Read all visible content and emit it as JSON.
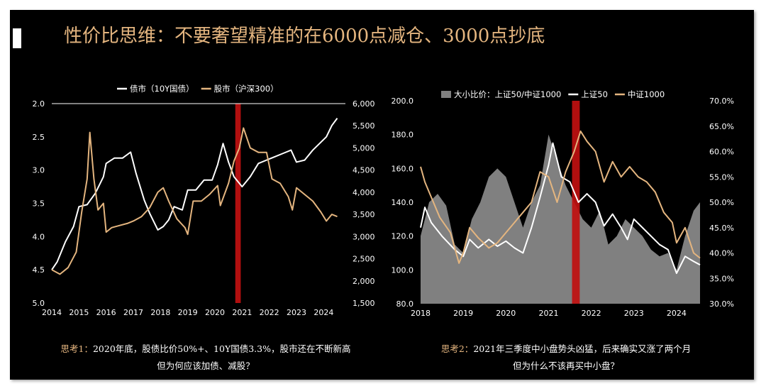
{
  "title": "性价比思维：不要奢望精准的在6000点减仓、3000点抄底",
  "colors": {
    "background": "#000000",
    "gold": "#e4b57f",
    "white": "#ffffff",
    "red": "#c01010",
    "gray": "#808080"
  },
  "chart_data": [
    {
      "type": "line",
      "legend_position": "top",
      "series": [
        {
          "name": "债市（10Y国债）",
          "axis": "left-inverted",
          "color": "#ffffff",
          "points": [
            [
              2014.0,
              4.5
            ],
            [
              2014.2,
              4.38
            ],
            [
              2014.5,
              4.08
            ],
            [
              2014.8,
              3.85
            ],
            [
              2015.0,
              3.55
            ],
            [
              2015.3,
              3.52
            ],
            [
              2015.6,
              3.35
            ],
            [
              2015.9,
              3.1
            ],
            [
              2016.0,
              2.9
            ],
            [
              2016.3,
              2.82
            ],
            [
              2016.6,
              2.82
            ],
            [
              2016.9,
              2.73
            ],
            [
              2017.1,
              3.05
            ],
            [
              2017.4,
              3.45
            ],
            [
              2017.6,
              3.65
            ],
            [
              2017.9,
              3.9
            ],
            [
              2018.1,
              3.85
            ],
            [
              2018.3,
              3.75
            ],
            [
              2018.5,
              3.55
            ],
            [
              2018.8,
              3.6
            ],
            [
              2019.0,
              3.3
            ],
            [
              2019.3,
              3.3
            ],
            [
              2019.6,
              3.15
            ],
            [
              2019.9,
              3.15
            ],
            [
              2020.1,
              2.92
            ],
            [
              2020.3,
              2.6
            ],
            [
              2020.5,
              2.88
            ],
            [
              2020.7,
              3.1
            ],
            [
              2020.9,
              3.2
            ],
            [
              2021.0,
              3.25
            ],
            [
              2021.3,
              3.1
            ],
            [
              2021.6,
              2.9
            ],
            [
              2021.9,
              2.85
            ],
            [
              2022.2,
              2.8
            ],
            [
              2022.5,
              2.75
            ],
            [
              2022.8,
              2.7
            ],
            [
              2023.0,
              2.88
            ],
            [
              2023.3,
              2.85
            ],
            [
              2023.6,
              2.7
            ],
            [
              2023.9,
              2.58
            ],
            [
              2024.1,
              2.5
            ],
            [
              2024.3,
              2.33
            ],
            [
              2024.5,
              2.22
            ]
          ]
        },
        {
          "name": "股市（沪深300）",
          "axis": "right",
          "color": "#e4b57f",
          "points": [
            [
              2014.0,
              2250
            ],
            [
              2014.3,
              2150
            ],
            [
              2014.6,
              2300
            ],
            [
              2014.9,
              2650
            ],
            [
              2015.1,
              3550
            ],
            [
              2015.3,
              4300
            ],
            [
              2015.4,
              5350
            ],
            [
              2015.55,
              4300
            ],
            [
              2015.7,
              3600
            ],
            [
              2015.9,
              3750
            ],
            [
              2016.0,
              3100
            ],
            [
              2016.2,
              3200
            ],
            [
              2016.5,
              3250
            ],
            [
              2016.8,
              3300
            ],
            [
              2017.0,
              3350
            ],
            [
              2017.3,
              3450
            ],
            [
              2017.6,
              3650
            ],
            [
              2017.9,
              4000
            ],
            [
              2018.1,
              4100
            ],
            [
              2018.3,
              3800
            ],
            [
              2018.6,
              3400
            ],
            [
              2018.9,
              3200
            ],
            [
              2019.0,
              3050
            ],
            [
              2019.2,
              3800
            ],
            [
              2019.5,
              3800
            ],
            [
              2019.8,
              3950
            ],
            [
              2020.1,
              4150
            ],
            [
              2020.2,
              3700
            ],
            [
              2020.5,
              4200
            ],
            [
              2020.7,
              4700
            ],
            [
              2020.9,
              5000
            ],
            [
              2021.05,
              5450
            ],
            [
              2021.3,
              5000
            ],
            [
              2021.6,
              4900
            ],
            [
              2021.9,
              4900
            ],
            [
              2022.1,
              4300
            ],
            [
              2022.4,
              4200
            ],
            [
              2022.7,
              3900
            ],
            [
              2022.85,
              3600
            ],
            [
              2023.0,
              4100
            ],
            [
              2023.3,
              3950
            ],
            [
              2023.6,
              3800
            ],
            [
              2023.9,
              3550
            ],
            [
              2024.1,
              3350
            ],
            [
              2024.3,
              3500
            ],
            [
              2024.5,
              3450
            ]
          ]
        }
      ],
      "x_ticks": [
        "2014",
        "2015",
        "2016",
        "2017",
        "2018",
        "2019",
        "2020",
        "2021",
        "2022",
        "2023",
        "2024"
      ],
      "y_left_ticks": [
        "2.0",
        "2.5",
        "3.0",
        "3.5",
        "4.0",
        "4.5",
        "5.0"
      ],
      "y_right_ticks": [
        "1,500",
        "2,000",
        "2,500",
        "3,000",
        "3,500",
        "4,000",
        "4,500",
        "5,000",
        "5,500",
        "6,000"
      ],
      "x_range": [
        2014,
        2024.8
      ],
      "y_left_range": [
        2.0,
        5.0
      ],
      "y_right_range": [
        1500,
        6000
      ],
      "highlight_band": [
        2020.75,
        2020.95
      ]
    },
    {
      "type": "area",
      "legend_position": "top",
      "series": [
        {
          "name": "大小比价：上证50/中证1000",
          "axis": "left",
          "color": "#808080",
          "points": [
            [
              2018.0,
              120
            ],
            [
              2018.2,
              140
            ],
            [
              2018.4,
              145
            ],
            [
              2018.6,
              138
            ],
            [
              2018.8,
              115
            ],
            [
              2019.0,
              110
            ],
            [
              2019.2,
              130
            ],
            [
              2019.4,
              140
            ],
            [
              2019.6,
              155
            ],
            [
              2019.8,
              160
            ],
            [
              2020.0,
              155
            ],
            [
              2020.2,
              140
            ],
            [
              2020.4,
              125
            ],
            [
              2020.6,
              140
            ],
            [
              2020.8,
              150
            ],
            [
              2021.0,
              180
            ],
            [
              2021.2,
              165
            ],
            [
              2021.4,
              150
            ],
            [
              2021.6,
              140
            ],
            [
              2021.8,
              130
            ],
            [
              2022.0,
              125
            ],
            [
              2022.2,
              135
            ],
            [
              2022.4,
              115
            ],
            [
              2022.6,
              120
            ],
            [
              2022.8,
              130
            ],
            [
              2023.0,
              125
            ],
            [
              2023.2,
              120
            ],
            [
              2023.4,
              112
            ],
            [
              2023.6,
              108
            ],
            [
              2023.8,
              110
            ],
            [
              2024.0,
              100
            ],
            [
              2024.2,
              120
            ],
            [
              2024.4,
              135
            ],
            [
              2024.55,
              140
            ]
          ]
        },
        {
          "name": "上证50",
          "axis": "left",
          "color": "#ffffff",
          "points": [
            [
              2018.0,
              125
            ],
            [
              2018.1,
              137
            ],
            [
              2018.25,
              128
            ],
            [
              2018.5,
              120
            ],
            [
              2018.8,
              112
            ],
            [
              2019.0,
              108
            ],
            [
              2019.15,
              118
            ],
            [
              2019.35,
              113
            ],
            [
              2019.6,
              118
            ],
            [
              2019.8,
              114
            ],
            [
              2020.0,
              117
            ],
            [
              2020.2,
              113
            ],
            [
              2020.4,
              110
            ],
            [
              2020.6,
              125
            ],
            [
              2020.8,
              143
            ],
            [
              2021.0,
              162
            ],
            [
              2021.1,
              175
            ],
            [
              2021.3,
              155
            ],
            [
              2021.5,
              152
            ],
            [
              2021.7,
              140
            ],
            [
              2021.9,
              145
            ],
            [
              2022.1,
              140
            ],
            [
              2022.3,
              126
            ],
            [
              2022.5,
              133
            ],
            [
              2022.7,
              125
            ],
            [
              2022.85,
              118
            ],
            [
              2023.0,
              130
            ],
            [
              2023.2,
              125
            ],
            [
              2023.4,
              120
            ],
            [
              2023.6,
              115
            ],
            [
              2023.8,
              112
            ],
            [
              2024.0,
              98
            ],
            [
              2024.2,
              108
            ],
            [
              2024.4,
              105
            ],
            [
              2024.55,
              103
            ]
          ]
        },
        {
          "name": "中证1000",
          "axis": "right",
          "color": "#e4b57f",
          "points": [
            [
              2018.0,
              57
            ],
            [
              2018.1,
              54
            ],
            [
              2018.25,
              51
            ],
            [
              2018.45,
              47
            ],
            [
              2018.7,
              44
            ],
            [
              2018.9,
              38
            ],
            [
              2019.0,
              40
            ],
            [
              2019.15,
              45
            ],
            [
              2019.35,
              43
            ],
            [
              2019.6,
              41
            ],
            [
              2019.8,
              42
            ],
            [
              2020.0,
              44
            ],
            [
              2020.2,
              46
            ],
            [
              2020.4,
              48
            ],
            [
              2020.6,
              50
            ],
            [
              2020.8,
              56
            ],
            [
              2021.0,
              55
            ],
            [
              2021.2,
              50
            ],
            [
              2021.4,
              56
            ],
            [
              2021.6,
              60
            ],
            [
              2021.75,
              64
            ],
            [
              2021.9,
              62
            ],
            [
              2022.1,
              60
            ],
            [
              2022.3,
              54
            ],
            [
              2022.5,
              58
            ],
            [
              2022.7,
              55
            ],
            [
              2022.9,
              57
            ],
            [
              2023.1,
              55
            ],
            [
              2023.3,
              54
            ],
            [
              2023.5,
              52
            ],
            [
              2023.7,
              48
            ],
            [
              2023.9,
              46
            ],
            [
              2024.0,
              42
            ],
            [
              2024.2,
              45
            ],
            [
              2024.4,
              40
            ],
            [
              2024.55,
              39
            ]
          ]
        }
      ],
      "x_ticks": [
        "2018",
        "2019",
        "2020",
        "2021",
        "2022",
        "2023",
        "2024"
      ],
      "y_left_ticks": [
        "80.0",
        "100.0",
        "120.0",
        "140.0",
        "160.0",
        "180.0",
        "200.0"
      ],
      "y_right_ticks": [
        "30.0%",
        "35.0%",
        "40.0%",
        "45.0%",
        "50.0%",
        "55.0%",
        "60.0%",
        "65.0%",
        "70.0%"
      ],
      "x_range": [
        2018,
        2024.6
      ],
      "y_left_range": [
        80,
        200
      ],
      "y_right_range": [
        30,
        70
      ],
      "highlight_band": [
        2021.55,
        2021.73
      ]
    }
  ],
  "notes": [
    {
      "lead": "思考1：",
      "line1": "2020年底，股债比价50%+、10Y国债3.3%，股市还在不断新高",
      "line2": "但为何应该加债、减股？"
    },
    {
      "lead": "思考2：",
      "line1": "2021年三季度中小盘势头凶猛，后来确实又涨了两个月",
      "line2": "但为什么不该再买中小盘？"
    }
  ]
}
